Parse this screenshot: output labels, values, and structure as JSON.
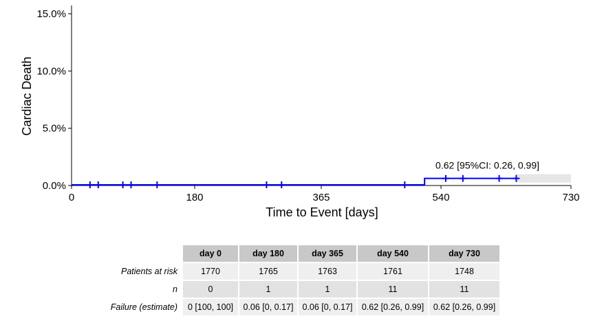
{
  "chart_data": {
    "type": "line",
    "title": "",
    "xlabel": "Time to Event [days]",
    "ylabel": "Cardiac Death",
    "xlim": [
      0,
      730
    ],
    "ylim": [
      0,
      15
    ],
    "x_ticks": [
      0,
      180,
      365,
      540,
      730
    ],
    "x_tick_labels": [
      "0",
      "180",
      "365",
      "540",
      "730"
    ],
    "y_ticks": [
      0,
      5,
      10,
      15
    ],
    "y_tick_labels": [
      "0.0%",
      "5.0%",
      "10.0%",
      "15.0%"
    ],
    "grid": false,
    "series": [
      {
        "color": "#0000ff",
        "x": [
          0,
          516,
          516,
          650
        ],
        "y": [
          0.06,
          0.06,
          0.62,
          0.62
        ],
        "censor_x": [
          27,
          39,
          75,
          87,
          125,
          285,
          307,
          487,
          547,
          572,
          625,
          650
        ],
        "censor_y": [
          0.06,
          0.06,
          0.06,
          0.06,
          0.06,
          0.06,
          0.06,
          0.06,
          0.62,
          0.62,
          0.62,
          0.62
        ]
      }
    ],
    "ci_band": {
      "x": [
        650,
        730
      ],
      "lower": 0.26,
      "upper": 0.99,
      "color": "#e6e6e6"
    },
    "annotation": {
      "text": "0.62 [95%CI: 0.26, 0.99]",
      "x": 540,
      "y": 0.99
    }
  },
  "table": {
    "headers": [
      "day 0",
      "day 180",
      "day 365",
      "day 540",
      "day 730"
    ],
    "rows": [
      {
        "label": "Patients at risk",
        "values": [
          "1770",
          "1765",
          "1763",
          "1761",
          "1748"
        ]
      },
      {
        "label": "n",
        "values": [
          "0",
          "1",
          "1",
          "11",
          "11"
        ]
      },
      {
        "label": "Failure (estimate)",
        "values": [
          "0 [100, 100]",
          "0.06 [0, 0.17]",
          "0.06 [0, 0.17]",
          "0.62 [0.26, 0.99]",
          "0.62 [0.26, 0.99]"
        ]
      }
    ]
  }
}
